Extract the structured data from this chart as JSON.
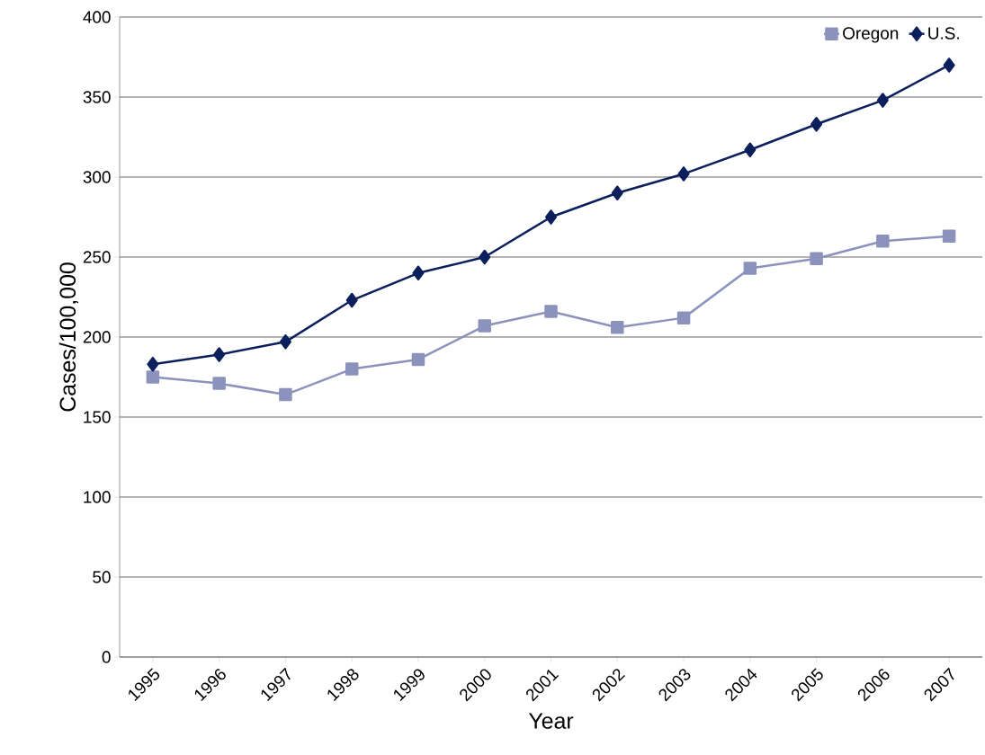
{
  "chart_data": {
    "type": "line",
    "xlabel": "Year",
    "ylabel": "Cases/100,000",
    "categories": [
      "1995",
      "1996",
      "1997",
      "1998",
      "1999",
      "2000",
      "2001",
      "2002",
      "2003",
      "2004",
      "2005",
      "2006",
      "2007"
    ],
    "series": [
      {
        "name": "Oregon",
        "color": "#8b93bd",
        "marker": "square",
        "values": [
          175,
          171,
          164,
          180,
          186,
          207,
          216,
          206,
          212,
          243,
          249,
          260,
          263
        ]
      },
      {
        "name": "U.S.",
        "color": "#0b1f5c",
        "marker": "diamond",
        "values": [
          183,
          189,
          197,
          223,
          240,
          250,
          275,
          290,
          302,
          317,
          333,
          348,
          370
        ]
      }
    ],
    "ylim": [
      0,
      400
    ],
    "yticks": [
      0,
      50,
      100,
      150,
      200,
      250,
      300,
      350,
      400
    ],
    "grid": "y",
    "legend": "top right",
    "line_style": "solid"
  }
}
